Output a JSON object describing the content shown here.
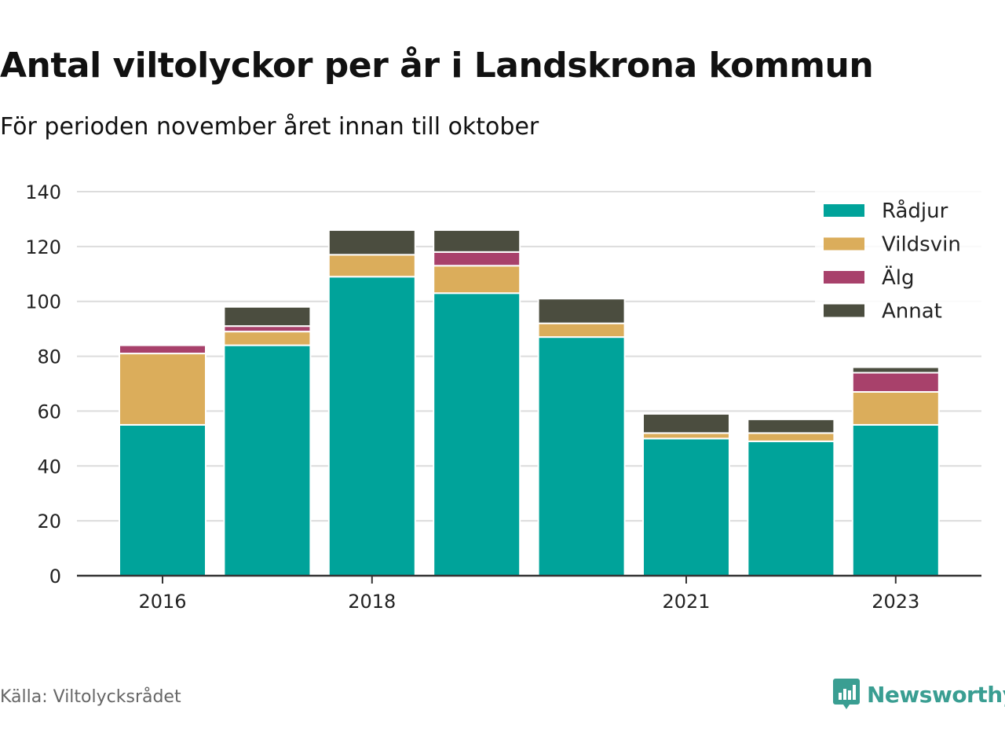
{
  "title": "Antal viltolyckor per år i Landskrona kommun",
  "subtitle": "För perioden november året innan till oktober",
  "source": "Källa: Viltolycksrådet",
  "brand": {
    "name": "Newsworthy",
    "icon": "newsworthy-logo-icon",
    "color": "#3a9e92"
  },
  "chart_data": {
    "type": "bar",
    "stacked": true,
    "categories": [
      "2016",
      "2017",
      "2018",
      "2019",
      "2020",
      "2021",
      "2022",
      "2023"
    ],
    "xtick_labels": [
      "2016",
      "",
      "2018",
      "",
      "",
      "2021",
      "",
      "2023"
    ],
    "series": [
      {
        "name": "Rådjur",
        "color": "#00a39a",
        "values": [
          55,
          84,
          109,
          103,
          87,
          50,
          49,
          55
        ]
      },
      {
        "name": "Vildsvin",
        "color": "#dbad5b",
        "values": [
          26,
          5,
          8,
          10,
          5,
          2,
          3,
          12
        ]
      },
      {
        "name": "Älg",
        "color": "#a8416b",
        "values": [
          3,
          2,
          0,
          5,
          0,
          0,
          0,
          7
        ]
      },
      {
        "name": "Annat",
        "color": "#4b4d3f",
        "values": [
          0,
          7,
          9,
          8,
          9,
          7,
          5,
          2
        ]
      }
    ],
    "xlabel": "",
    "ylabel": "",
    "ylim": [
      0,
      140
    ],
    "yticks": [
      0,
      20,
      40,
      60,
      80,
      100,
      120,
      140
    ],
    "grid": true,
    "legend_position": "top-right"
  }
}
